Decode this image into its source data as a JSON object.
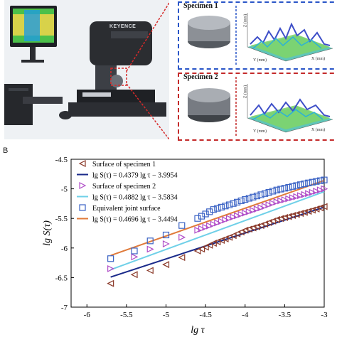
{
  "figure": {
    "panel_a_label": "·",
    "panel_b_label": "B",
    "monitor_brand": "KEYENCE",
    "specimens": [
      {
        "title": "Specimen 1",
        "color": "#2a56c8"
      },
      {
        "title": "Specimen 2",
        "color": "#c42a2a"
      }
    ],
    "surface_axes": {
      "z_label": "Z (mm)",
      "y_label": "Y (mm)",
      "x_label": "X (mm)",
      "z_ticks": [
        "0",
        "0.2",
        "0.4",
        "0.6",
        "0.8",
        "1"
      ],
      "x_ticks": [
        "0",
        "0.1",
        "0.2",
        "0.3",
        "0.4",
        "0.5"
      ],
      "y_ticks": [
        "0.1",
        "0.2",
        "0.3",
        "0.4",
        "0.5"
      ]
    }
  },
  "chart_data": {
    "type": "scatter",
    "xlabel": "lg τ",
    "ylabel": "lg S(τ)",
    "xlim": [
      -6.2,
      -3
    ],
    "ylim": [
      -7,
      -4.5
    ],
    "x_ticks": [
      "-6",
      "-5.5",
      "-5",
      "-4.5",
      "-4",
      "-3.5",
      "-3"
    ],
    "y_ticks": [
      "-4.5",
      "-5",
      "-5.5",
      "-6",
      "-6.5",
      "-7"
    ],
    "x_range_data": [
      -5.7,
      -3
    ],
    "series": [
      {
        "name": "Surface of specimen 1",
        "marker": "triangle-left",
        "color": "#8b3a2a",
        "points": [
          [
            -5.7,
            -6.6
          ],
          [
            -5.4,
            -6.45
          ],
          [
            -5.2,
            -6.38
          ],
          [
            -5.0,
            -6.28
          ],
          [
            -4.8,
            -6.16
          ],
          [
            -4.6,
            -6.05
          ],
          [
            -4.4,
            -5.92
          ],
          [
            -4.2,
            -5.82
          ],
          [
            -4.0,
            -5.7
          ],
          [
            -3.8,
            -5.62
          ],
          [
            -3.6,
            -5.52
          ],
          [
            -3.4,
            -5.45
          ],
          [
            -3.2,
            -5.38
          ],
          [
            -3.0,
            -5.3
          ]
        ]
      },
      {
        "name": "Surface of specimen 2",
        "marker": "triangle-right",
        "color": "#b04ec8",
        "points": [
          [
            -5.7,
            -6.35
          ],
          [
            -5.4,
            -6.15
          ],
          [
            -5.2,
            -6.02
          ],
          [
            -5.0,
            -5.93
          ],
          [
            -4.8,
            -5.82
          ],
          [
            -4.6,
            -5.7
          ],
          [
            -4.4,
            -5.6
          ],
          [
            -4.2,
            -5.5
          ],
          [
            -4.0,
            -5.41
          ],
          [
            -3.8,
            -5.32
          ],
          [
            -3.6,
            -5.22
          ],
          [
            -3.4,
            -5.15
          ],
          [
            -3.2,
            -5.08
          ],
          [
            -3.0,
            -5.0
          ]
        ]
      },
      {
        "name": "Equivalent joint surface",
        "marker": "square",
        "color": "#3a62c4",
        "points": [
          [
            -5.7,
            -6.18
          ],
          [
            -5.4,
            -6.05
          ],
          [
            -5.2,
            -5.88
          ],
          [
            -5.0,
            -5.78
          ],
          [
            -4.8,
            -5.62
          ],
          [
            -4.6,
            -5.5
          ],
          [
            -4.4,
            -5.35
          ],
          [
            -4.2,
            -5.27
          ],
          [
            -4.0,
            -5.18
          ],
          [
            -3.8,
            -5.1
          ],
          [
            -3.6,
            -5.02
          ],
          [
            -3.4,
            -4.96
          ],
          [
            -3.2,
            -4.9
          ],
          [
            -3.0,
            -4.85
          ]
        ]
      }
    ],
    "fits": [
      {
        "label": "lg S(τ) = 0.4379 lg τ − 3.9954",
        "slope": 0.4379,
        "intercept": -3.9954,
        "color": "#1a2a8a"
      },
      {
        "label": "lg S(τ) = 0.4882 lg τ − 3.5834",
        "slope": 0.4882,
        "intercept": -3.5834,
        "color": "#6fd0e8"
      },
      {
        "label": "lg S(τ) = 0.4696 lg τ − 3.4494",
        "slope": 0.4696,
        "intercept": -3.4494,
        "color": "#e07a3a"
      }
    ],
    "legend_position": "top-left"
  }
}
